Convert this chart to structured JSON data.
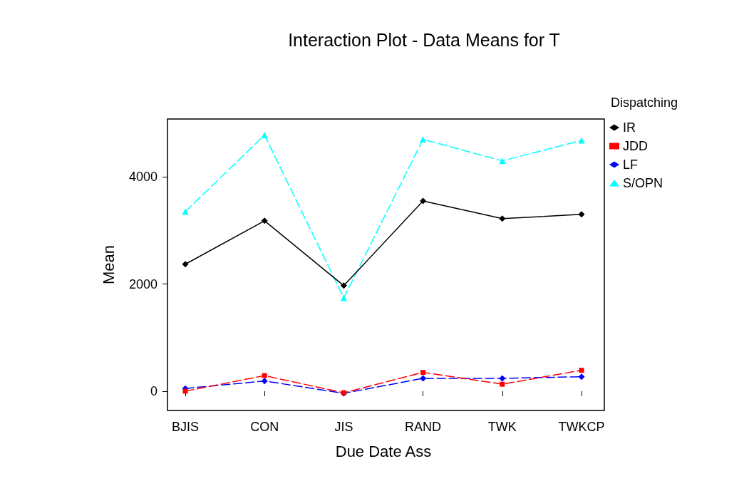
{
  "chart_data": {
    "type": "line",
    "title": "Interaction Plot - Data Means for T",
    "xlabel": "Due Date Ass",
    "ylabel": "Mean",
    "legend_title": "Dispatching",
    "categories": [
      "BJIS",
      "CON",
      "JIS",
      "RAND",
      "TWK",
      "TWKCP"
    ],
    "series": [
      {
        "name": "IR",
        "color": "#000000",
        "marker": "diamond",
        "line_style": "solid",
        "values": [
          2370,
          3180,
          1970,
          3550,
          3220,
          3300
        ]
      },
      {
        "name": "JDD",
        "color": "#ff0000",
        "marker": "square",
        "line_style": "dashed",
        "values": [
          0,
          290,
          -30,
          350,
          130,
          390
        ]
      },
      {
        "name": "LF",
        "color": "#0000ff",
        "marker": "diamond",
        "line_style": "dashed",
        "values": [
          50,
          190,
          -40,
          240,
          240,
          270
        ]
      },
      {
        "name": "S/OPN",
        "color": "#00ffff",
        "marker": "triangle",
        "line_style": "dashed",
        "values": [
          3350,
          4780,
          1740,
          4700,
          4300,
          4680
        ]
      }
    ],
    "ylim": [
      -360,
      5080
    ],
    "yticks": [
      0,
      2000,
      4000
    ],
    "grid": false,
    "legend": "top right"
  }
}
